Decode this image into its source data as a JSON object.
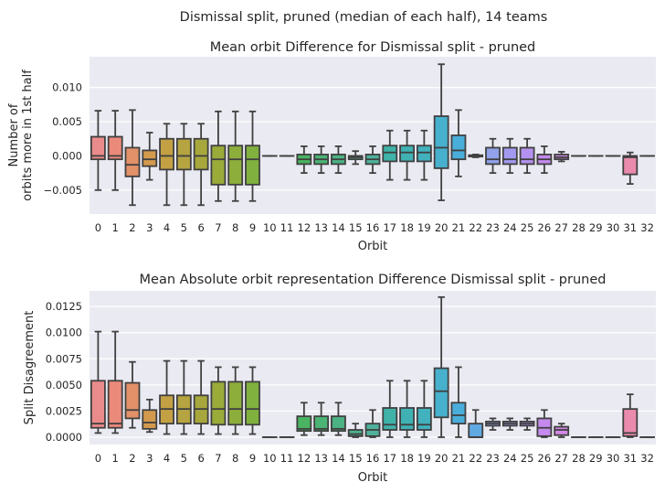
{
  "suptitle": "Dismissal split, pruned (median of each half), 14 teams",
  "chart_data": [
    {
      "type": "box",
      "title": "Mean orbit Difference for Dismissal split - pruned",
      "xlabel": "Orbit",
      "ylabel": [
        "Number of",
        "orbits more in 1st half"
      ],
      "ylim": [
        -0.0085,
        0.0145
      ],
      "yticks": [
        -0.005,
        0.0,
        0.005,
        0.01
      ],
      "ytick_labels": [
        "−0.005",
        "0.000",
        "0.005",
        "0.010"
      ],
      "grid": true,
      "categories": [
        "0",
        "1",
        "2",
        "3",
        "4",
        "5",
        "6",
        "7",
        "8",
        "9",
        "10",
        "11",
        "12",
        "13",
        "14",
        "15",
        "16",
        "17",
        "18",
        "19",
        "20",
        "21",
        "22",
        "23",
        "24",
        "25",
        "26",
        "27",
        "28",
        "29",
        "30",
        "31",
        "32"
      ],
      "boxes": [
        {
          "lo": -0.005,
          "q1": -0.0005,
          "med": 0.0,
          "q3": 0.0028,
          "hi": 0.0066
        },
        {
          "lo": -0.005,
          "q1": -0.0005,
          "med": 0.0,
          "q3": 0.0028,
          "hi": 0.0066
        },
        {
          "lo": -0.0072,
          "q1": -0.003,
          "med": -0.0013,
          "q3": 0.0012,
          "hi": 0.0067
        },
        {
          "lo": -0.0035,
          "q1": -0.0015,
          "med": -0.0005,
          "q3": 0.0008,
          "hi": 0.0034
        },
        {
          "lo": -0.0072,
          "q1": -0.002,
          "med": 0.0,
          "q3": 0.0025,
          "hi": 0.0047
        },
        {
          "lo": -0.0072,
          "q1": -0.002,
          "med": 0.0,
          "q3": 0.0025,
          "hi": 0.0047
        },
        {
          "lo": -0.0072,
          "q1": -0.002,
          "med": 0.0,
          "q3": 0.0025,
          "hi": 0.0047
        },
        {
          "lo": -0.0066,
          "q1": -0.0042,
          "med": -0.0005,
          "q3": 0.0015,
          "hi": 0.0065
        },
        {
          "lo": -0.0066,
          "q1": -0.0042,
          "med": -0.0005,
          "q3": 0.0015,
          "hi": 0.0065
        },
        {
          "lo": -0.0066,
          "q1": -0.0042,
          "med": -0.0005,
          "q3": 0.0015,
          "hi": 0.0065
        },
        {
          "lo": 0.0,
          "q1": 0.0,
          "med": 0.0,
          "q3": 0.0,
          "hi": 0.0
        },
        {
          "lo": 0.0,
          "q1": 0.0,
          "med": 0.0,
          "q3": 0.0,
          "hi": 0.0
        },
        {
          "lo": -0.0025,
          "q1": -0.0012,
          "med": -0.0005,
          "q3": 0.0002,
          "hi": 0.0014
        },
        {
          "lo": -0.0025,
          "q1": -0.0012,
          "med": -0.0005,
          "q3": 0.0002,
          "hi": 0.0014
        },
        {
          "lo": -0.0025,
          "q1": -0.0012,
          "med": -0.0005,
          "q3": 0.0002,
          "hi": 0.0014
        },
        {
          "lo": -0.0012,
          "q1": -0.0005,
          "med": -0.0002,
          "q3": 0.0,
          "hi": 0.0007
        },
        {
          "lo": -0.0025,
          "q1": -0.0012,
          "med": -0.0005,
          "q3": 0.0002,
          "hi": 0.0014
        },
        {
          "lo": -0.0035,
          "q1": -0.0008,
          "med": 0.0005,
          "q3": 0.0015,
          "hi": 0.0037
        },
        {
          "lo": -0.0035,
          "q1": -0.0008,
          "med": 0.0005,
          "q3": 0.0015,
          "hi": 0.0037
        },
        {
          "lo": -0.0035,
          "q1": -0.0008,
          "med": 0.0005,
          "q3": 0.0015,
          "hi": 0.0037
        },
        {
          "lo": -0.0065,
          "q1": -0.0018,
          "med": 0.0012,
          "q3": 0.0058,
          "hi": 0.0134
        },
        {
          "lo": -0.003,
          "q1": -0.0005,
          "med": 0.0008,
          "q3": 0.003,
          "hi": 0.0067
        },
        {
          "lo": -0.0002,
          "q1": -0.0001,
          "med": 0.0,
          "q3": 0.0001,
          "hi": 0.0002
        },
        {
          "lo": -0.0025,
          "q1": -0.0012,
          "med": -0.0005,
          "q3": 0.0012,
          "hi": 0.0025
        },
        {
          "lo": -0.0025,
          "q1": -0.0012,
          "med": -0.0005,
          "q3": 0.0012,
          "hi": 0.0025
        },
        {
          "lo": -0.0025,
          "q1": -0.0012,
          "med": -0.0005,
          "q3": 0.0012,
          "hi": 0.0025
        },
        {
          "lo": -0.0025,
          "q1": -0.0012,
          "med": -0.0005,
          "q3": 0.0002,
          "hi": 0.0014
        },
        {
          "lo": -0.0008,
          "q1": -0.0005,
          "med": -0.0002,
          "q3": 0.0002,
          "hi": 0.0006
        },
        {
          "lo": 0.0,
          "q1": 0.0,
          "med": 0.0,
          "q3": 0.0,
          "hi": 0.0
        },
        {
          "lo": 0.0,
          "q1": 0.0,
          "med": 0.0,
          "q3": 0.0,
          "hi": 0.0
        },
        {
          "lo": 0.0,
          "q1": 0.0,
          "med": 0.0,
          "q3": 0.0,
          "hi": 0.0
        },
        {
          "lo": -0.0041,
          "q1": -0.0027,
          "med": -0.0002,
          "q3": 0.0,
          "hi": 0.0005
        },
        {
          "lo": 0.0,
          "q1": 0.0,
          "med": 0.0,
          "q3": 0.0,
          "hi": 0.0
        }
      ]
    },
    {
      "type": "box",
      "title": "Mean Absolute orbit representation Difference Dismissal split - pruned",
      "xlabel": "Orbit",
      "ylabel": [
        "Split Disagreement"
      ],
      "ylim": [
        -0.0007,
        0.014
      ],
      "yticks": [
        0.0,
        0.0025,
        0.005,
        0.0075,
        0.01,
        0.0125
      ],
      "ytick_labels": [
        "0.0000",
        "0.0025",
        "0.0050",
        "0.0075",
        "0.0100",
        "0.0125"
      ],
      "grid": true,
      "categories": [
        "0",
        "1",
        "2",
        "3",
        "4",
        "5",
        "6",
        "7",
        "8",
        "9",
        "10",
        "11",
        "12",
        "13",
        "14",
        "15",
        "16",
        "17",
        "18",
        "19",
        "20",
        "21",
        "22",
        "23",
        "24",
        "25",
        "26",
        "27",
        "28",
        "29",
        "30",
        "31",
        "32"
      ],
      "boxes": [
        {
          "lo": 0.0004,
          "q1": 0.0009,
          "med": 0.0013,
          "q3": 0.0054,
          "hi": 0.0101
        },
        {
          "lo": 0.0004,
          "q1": 0.0009,
          "med": 0.0013,
          "q3": 0.0054,
          "hi": 0.0101
        },
        {
          "lo": 0.0009,
          "q1": 0.0018,
          "med": 0.0026,
          "q3": 0.0052,
          "hi": 0.0072
        },
        {
          "lo": 0.0005,
          "q1": 0.0008,
          "med": 0.0014,
          "q3": 0.0026,
          "hi": 0.0036
        },
        {
          "lo": 0.0003,
          "q1": 0.0013,
          "med": 0.0027,
          "q3": 0.004,
          "hi": 0.0073
        },
        {
          "lo": 0.0003,
          "q1": 0.0013,
          "med": 0.0027,
          "q3": 0.004,
          "hi": 0.0073
        },
        {
          "lo": 0.0003,
          "q1": 0.0013,
          "med": 0.0027,
          "q3": 0.004,
          "hi": 0.0073
        },
        {
          "lo": 0.0003,
          "q1": 0.0012,
          "med": 0.0027,
          "q3": 0.0053,
          "hi": 0.0067
        },
        {
          "lo": 0.0003,
          "q1": 0.0012,
          "med": 0.0027,
          "q3": 0.0053,
          "hi": 0.0067
        },
        {
          "lo": 0.0003,
          "q1": 0.0012,
          "med": 0.0027,
          "q3": 0.0053,
          "hi": 0.0067
        },
        {
          "lo": 0.0,
          "q1": 0.0,
          "med": 0.0,
          "q3": 0.0,
          "hi": 0.0
        },
        {
          "lo": 0.0,
          "q1": 0.0,
          "med": 0.0,
          "q3": 0.0,
          "hi": 0.0
        },
        {
          "lo": 0.0002,
          "q1": 0.0006,
          "med": 0.0008,
          "q3": 0.002,
          "hi": 0.0033
        },
        {
          "lo": 0.0002,
          "q1": 0.0006,
          "med": 0.0008,
          "q3": 0.002,
          "hi": 0.0033
        },
        {
          "lo": 0.0002,
          "q1": 0.0006,
          "med": 0.0008,
          "q3": 0.002,
          "hi": 0.0033
        },
        {
          "lo": 0.0,
          "q1": 0.0001,
          "med": 0.0003,
          "q3": 0.0007,
          "hi": 0.0013
        },
        {
          "lo": 0.0,
          "q1": 0.0001,
          "med": 0.0007,
          "q3": 0.0013,
          "hi": 0.0026
        },
        {
          "lo": 0.0,
          "q1": 0.0007,
          "med": 0.0012,
          "q3": 0.0028,
          "hi": 0.0054
        },
        {
          "lo": 0.0,
          "q1": 0.0007,
          "med": 0.0012,
          "q3": 0.0028,
          "hi": 0.0054
        },
        {
          "lo": 0.0,
          "q1": 0.0007,
          "med": 0.0012,
          "q3": 0.0028,
          "hi": 0.0054
        },
        {
          "lo": 0.0,
          "q1": 0.0019,
          "med": 0.0044,
          "q3": 0.0066,
          "hi": 0.0134
        },
        {
          "lo": 0.0,
          "q1": 0.0013,
          "med": 0.0021,
          "q3": 0.0033,
          "hi": 0.0067
        },
        {
          "lo": 0.0,
          "q1": 0.0,
          "med": 0.0,
          "q3": 0.0013,
          "hi": 0.0026
        },
        {
          "lo": 0.0007,
          "q1": 0.0011,
          "med": 0.0013,
          "q3": 0.0015,
          "hi": 0.0018
        },
        {
          "lo": 0.0007,
          "q1": 0.0011,
          "med": 0.0013,
          "q3": 0.0015,
          "hi": 0.0018
        },
        {
          "lo": 0.0007,
          "q1": 0.0011,
          "med": 0.0013,
          "q3": 0.0015,
          "hi": 0.0018
        },
        {
          "lo": 0.0,
          "q1": 0.0001,
          "med": 0.0009,
          "q3": 0.0018,
          "hi": 0.0026
        },
        {
          "lo": 0.0,
          "q1": 0.0002,
          "med": 0.0007,
          "q3": 0.001,
          "hi": 0.0013
        },
        {
          "lo": 0.0,
          "q1": 0.0,
          "med": 0.0,
          "q3": 0.0,
          "hi": 0.0
        },
        {
          "lo": 0.0,
          "q1": 0.0,
          "med": 0.0,
          "q3": 0.0,
          "hi": 0.0
        },
        {
          "lo": 0.0,
          "q1": 0.0,
          "med": 0.0,
          "q3": 0.0,
          "hi": 0.0
        },
        {
          "lo": 0.0,
          "q1": 0.0001,
          "med": 0.0004,
          "q3": 0.0027,
          "hi": 0.0041
        },
        {
          "lo": 0.0,
          "q1": 0.0,
          "med": 0.0,
          "q3": 0.0,
          "hi": 0.0
        }
      ]
    }
  ],
  "palette": [
    "#ea8b8b",
    "#eb8a7b",
    "#e29168",
    "#d39a4e",
    "#c3a043",
    "#b5a440",
    "#a7a73d",
    "#9aab3a",
    "#8eae3c",
    "#80b13f",
    "#6cb149",
    "#56b453",
    "#4ab462",
    "#4bb374",
    "#4cb283",
    "#4eb390",
    "#4fb29c",
    "#3fb3a8",
    "#3fb1b3",
    "#41b1be",
    "#47b0cd",
    "#4aaedb",
    "#61a9e2",
    "#91a1ea",
    "#a39af0",
    "#b592f0",
    "#c48aee",
    "#d487e8",
    "#e185db",
    "#e688cd",
    "#e98abc",
    "#ea8aac",
    "#ea8b9b"
  ]
}
